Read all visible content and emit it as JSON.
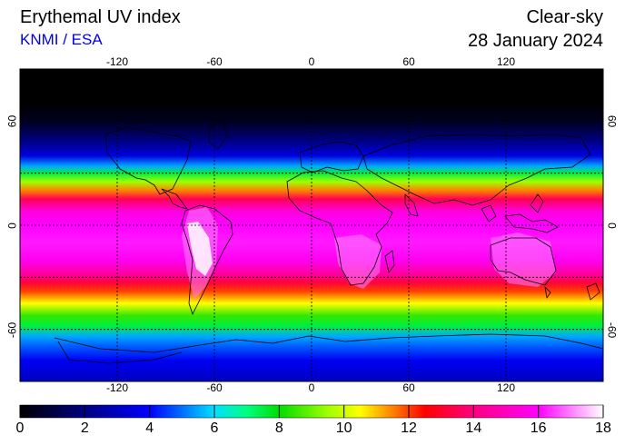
{
  "header": {
    "title": "Erythemal UV index",
    "credit": "KNMI / ESA",
    "sky_type": "Clear-sky",
    "date": "28 January 2024"
  },
  "map": {
    "projection": "equirectangular",
    "lon_range": [
      -180,
      180
    ],
    "lat_range": [
      -90,
      90
    ],
    "graticule_lons": [
      -120,
      -60,
      0,
      60,
      120
    ],
    "graticule_lats": [
      -60,
      -30,
      0,
      30,
      60
    ],
    "lon_tick_labels": [
      "-120",
      "-60",
      "0",
      "60",
      "120"
    ],
    "lat_tick_labels": [
      "60",
      "0",
      "-60"
    ],
    "grid": "dotted",
    "background": "#000000",
    "uv_by_latitude": [
      {
        "lat": 90,
        "uv": 0
      },
      {
        "lat": 70,
        "uv": 0
      },
      {
        "lat": 60,
        "uv": 0.5
      },
      {
        "lat": 50,
        "uv": 1.8
      },
      {
        "lat": 40,
        "uv": 3.5
      },
      {
        "lat": 34,
        "uv": 5.5
      },
      {
        "lat": 30,
        "uv": 7.5
      },
      {
        "lat": 25,
        "uv": 9.5
      },
      {
        "lat": 20,
        "uv": 11.5
      },
      {
        "lat": 15,
        "uv": 13.5
      },
      {
        "lat": 8,
        "uv": 15.5
      },
      {
        "lat": 0,
        "uv": 16
      },
      {
        "lat": -10,
        "uv": 16.2
      },
      {
        "lat": -20,
        "uv": 15.8
      },
      {
        "lat": -28,
        "uv": 14.5
      },
      {
        "lat": -33,
        "uv": 13.2
      },
      {
        "lat": -38,
        "uv": 12
      },
      {
        "lat": -45,
        "uv": 10.5
      },
      {
        "lat": -52,
        "uv": 8.5
      },
      {
        "lat": -58,
        "uv": 7.5
      },
      {
        "lat": -64,
        "uv": 5.5
      },
      {
        "lat": -70,
        "uv": 4.8
      },
      {
        "lat": -78,
        "uv": 3.8
      },
      {
        "lat": -90,
        "uv": 3
      }
    ]
  },
  "colorbar": {
    "min": 0,
    "max": 18,
    "ticks": [
      "0",
      "2",
      "4",
      "6",
      "8",
      "10",
      "12",
      "14",
      "16",
      "18"
    ],
    "stops": [
      {
        "value": 0,
        "color": "#000000"
      },
      {
        "value": 2,
        "color": "#000080"
      },
      {
        "value": 4,
        "color": "#0000ff"
      },
      {
        "value": 6,
        "color": "#00e0ff"
      },
      {
        "value": 7,
        "color": "#00ff80"
      },
      {
        "value": 8,
        "color": "#00dd00"
      },
      {
        "value": 9.5,
        "color": "#a0ff00"
      },
      {
        "value": 10.5,
        "color": "#ffff00"
      },
      {
        "value": 11.5,
        "color": "#ff8000"
      },
      {
        "value": 12.5,
        "color": "#ff0000"
      },
      {
        "value": 14,
        "color": "#ff0080"
      },
      {
        "value": 16,
        "color": "#ff00ff"
      },
      {
        "value": 17,
        "color": "#ff80ff"
      },
      {
        "value": 18,
        "color": "#ffffff"
      }
    ]
  }
}
